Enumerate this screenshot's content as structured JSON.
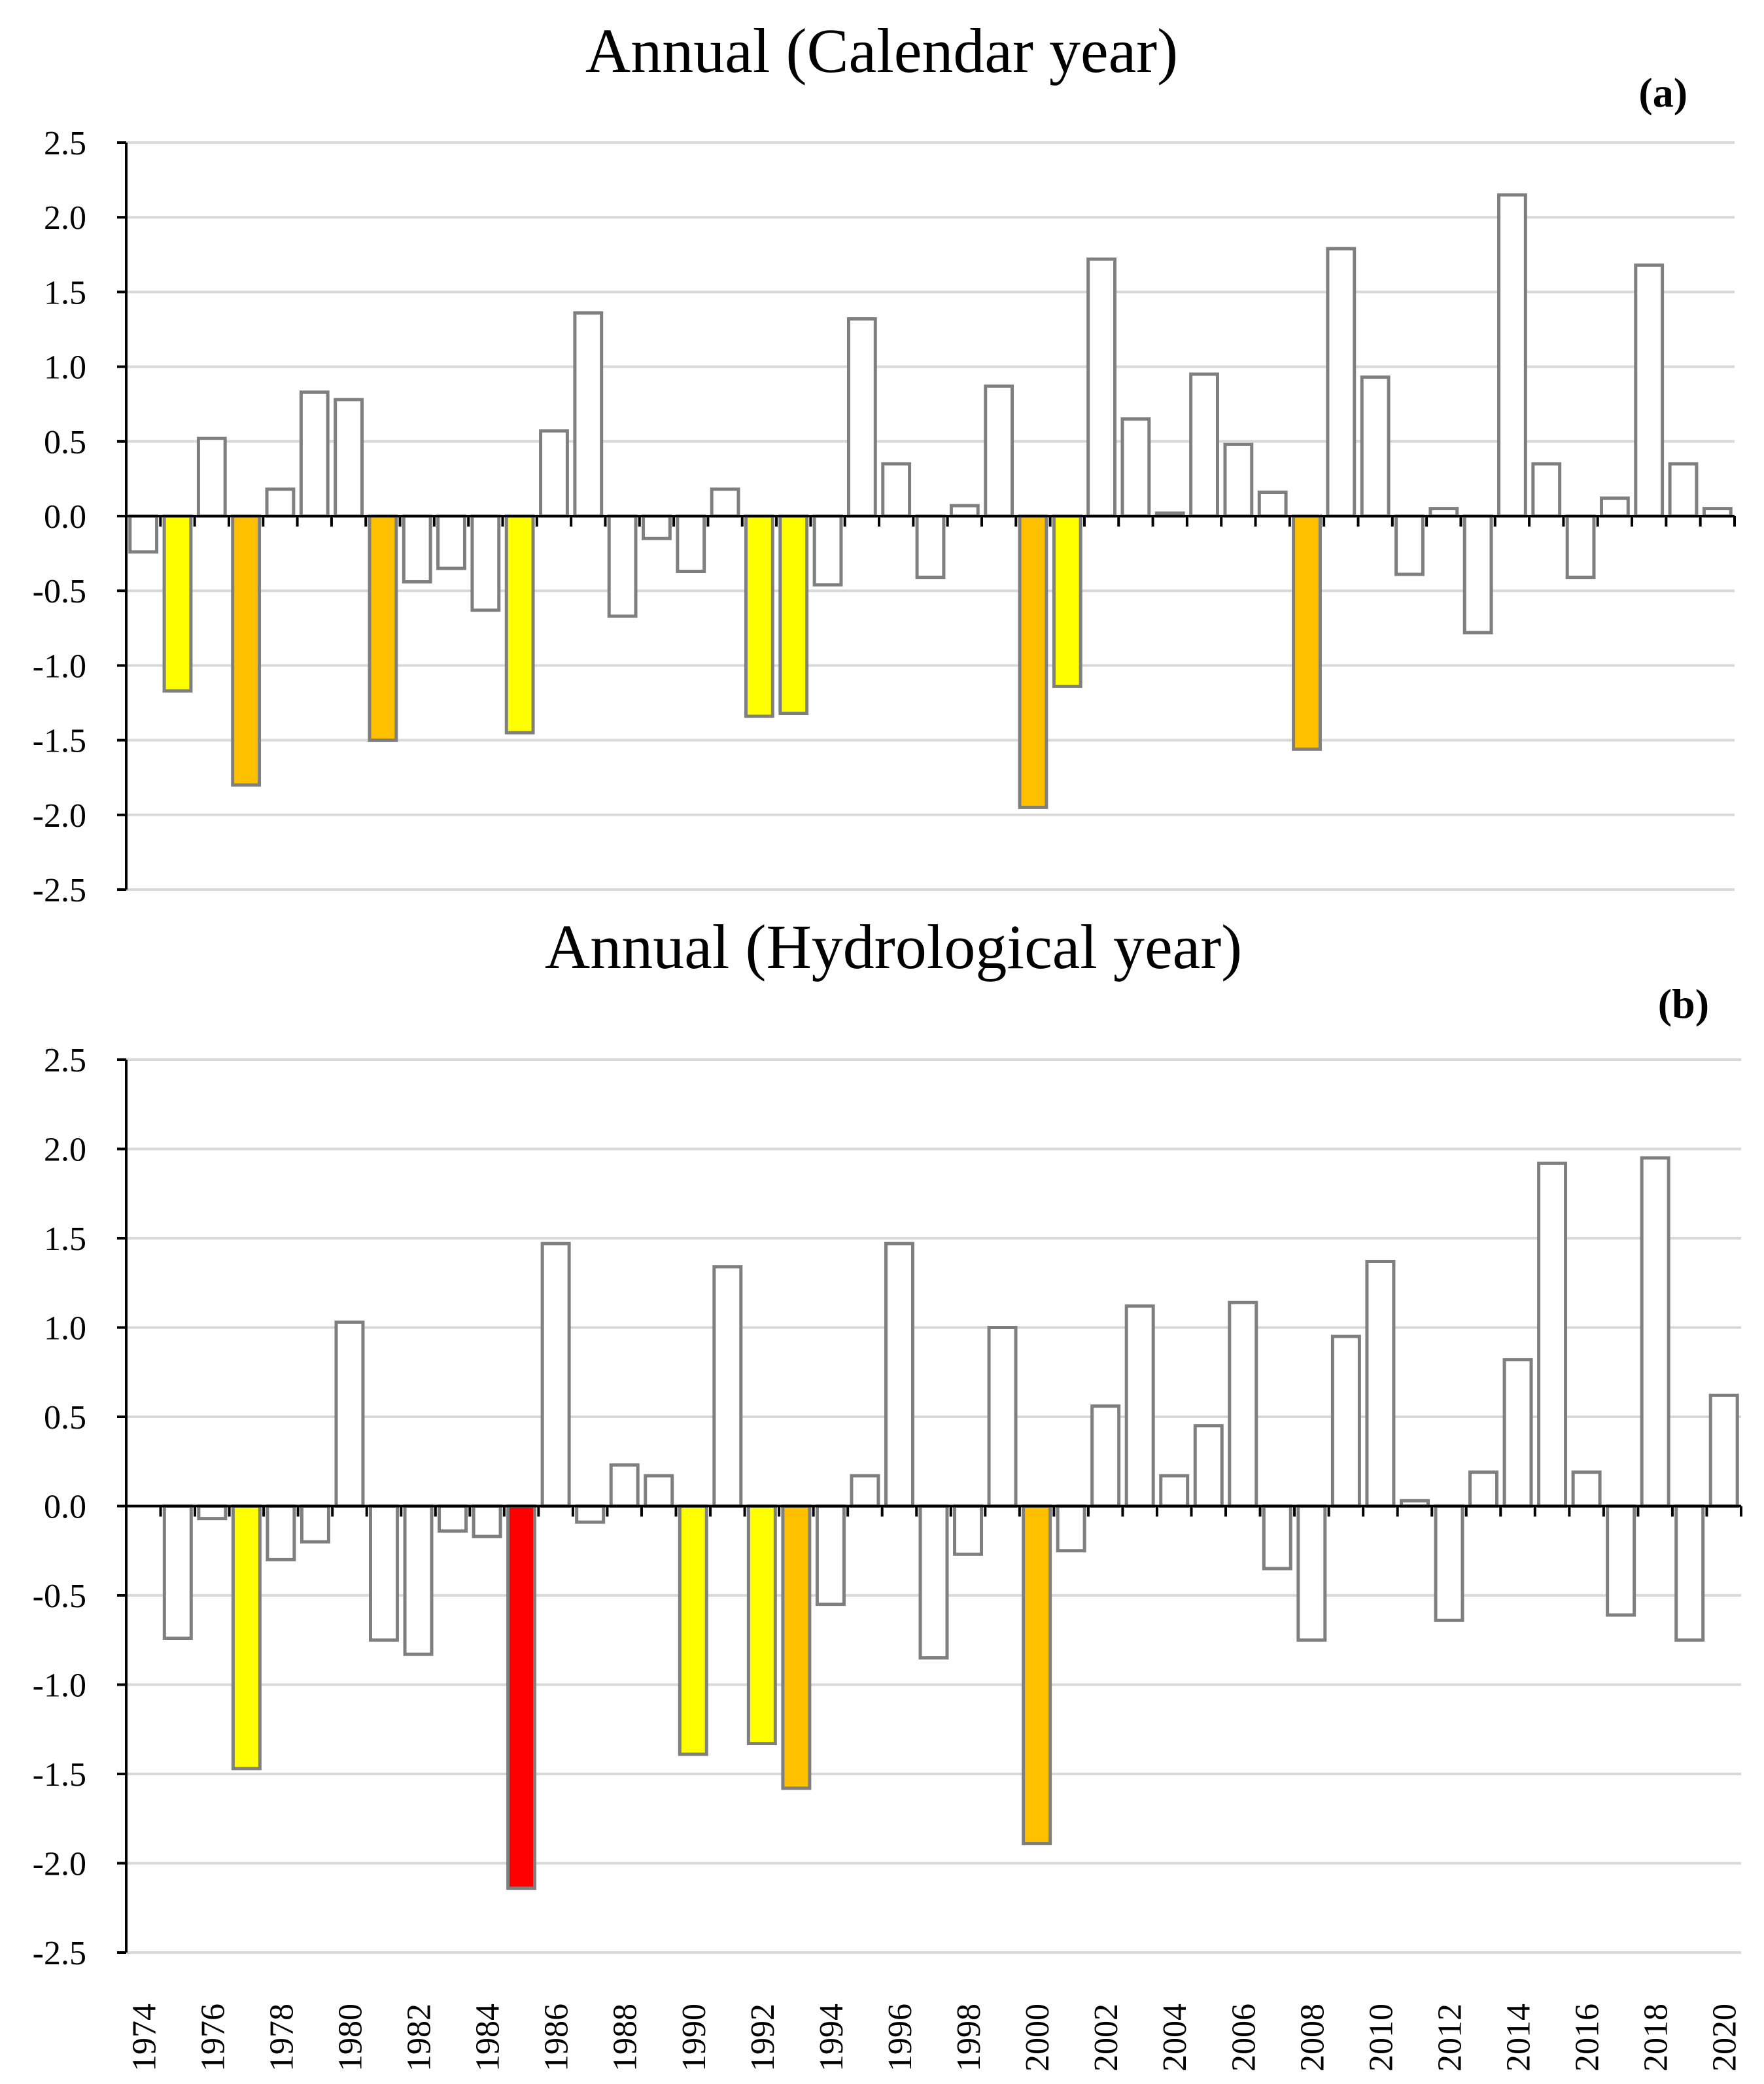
{
  "chart_data": [
    {
      "type": "bar",
      "title": "Annual (Calendar year)",
      "panel_label": "(a)",
      "xlabel": "",
      "ylabel": "",
      "ylim": [
        -2.5,
        2.5
      ],
      "y_ticks": [
        "2.5",
        "2.0",
        "1.5",
        "1.0",
        "0.5",
        "0.0",
        "-0.5",
        "-1.0",
        "-1.5",
        "-2.0",
        "-2.5"
      ],
      "y_tick_values": [
        2.5,
        2.0,
        1.5,
        1.0,
        0.5,
        0.0,
        -0.5,
        -1.0,
        -1.5,
        -2.0,
        -2.5
      ],
      "categories": [
        "1974",
        "1975",
        "1976",
        "1977",
        "1978",
        "1979",
        "1980",
        "1981",
        "1982",
        "1983",
        "1984",
        "1985",
        "1986",
        "1987",
        "1988",
        "1989",
        "1990",
        "1991",
        "1992",
        "1993",
        "1994",
        "1995",
        "1996",
        "1997",
        "1998",
        "1999",
        "2000",
        "2001",
        "2002",
        "2003",
        "2004",
        "2005",
        "2006",
        "2007",
        "2008",
        "2009",
        "2010",
        "2011",
        "2012",
        "2013",
        "2014",
        "2015",
        "2016",
        "2017",
        "2018",
        "2019",
        "2020"
      ],
      "values": [
        -0.24,
        -1.17,
        0.52,
        -1.8,
        0.18,
        0.83,
        0.78,
        -1.5,
        -0.44,
        -0.35,
        -0.63,
        -1.45,
        0.57,
        1.36,
        -0.67,
        -0.15,
        -0.37,
        0.18,
        -1.34,
        -1.32,
        -0.46,
        1.32,
        0.35,
        -0.41,
        0.07,
        0.87,
        -1.95,
        -1.14,
        1.72,
        0.65,
        0.02,
        0.95,
        0.48,
        0.16,
        -1.56,
        1.79,
        0.93,
        -0.39,
        0.05,
        -0.78,
        2.15,
        0.35,
        -0.41,
        0.12,
        1.68,
        0.35,
        0.05
      ],
      "bar_colors": [
        "#ffffff",
        "#ffff00",
        "#ffffff",
        "#ffc000",
        "#ffffff",
        "#ffffff",
        "#ffffff",
        "#ffc000",
        "#ffffff",
        "#ffffff",
        "#ffffff",
        "#ffff00",
        "#ffffff",
        "#ffffff",
        "#ffffff",
        "#ffffff",
        "#ffffff",
        "#ffffff",
        "#ffff00",
        "#ffff00",
        "#ffffff",
        "#ffffff",
        "#ffffff",
        "#ffffff",
        "#ffffff",
        "#ffffff",
        "#ffc000",
        "#ffff00",
        "#ffffff",
        "#ffffff",
        "#ffffff",
        "#ffffff",
        "#ffffff",
        "#ffffff",
        "#ffc000",
        "#ffffff",
        "#ffffff",
        "#ffffff",
        "#ffffff",
        "#ffffff",
        "#ffffff",
        "#ffffff",
        "#ffffff",
        "#ffffff",
        "#ffffff",
        "#ffffff",
        "#ffffff"
      ],
      "show_x_tick_labels": false,
      "grid": true
    },
    {
      "type": "bar",
      "title": "Annual (Hydrological year)",
      "panel_label": "(b)",
      "xlabel": "",
      "ylabel": "",
      "ylim": [
        -2.5,
        2.5
      ],
      "y_ticks": [
        "2.5",
        "2.0",
        "1.5",
        "1.0",
        "0.5",
        "0.0",
        "-0.5",
        "-1.0",
        "-1.5",
        "-2.0",
        "-2.5"
      ],
      "y_tick_values": [
        2.5,
        2.0,
        1.5,
        1.0,
        0.5,
        0.0,
        -0.5,
        -1.0,
        -1.5,
        -2.0,
        -2.5
      ],
      "categories": [
        "1974",
        "1975",
        "1976",
        "1977",
        "1978",
        "1979",
        "1980",
        "1981",
        "1982",
        "1983",
        "1984",
        "1985",
        "1986",
        "1987",
        "1988",
        "1989",
        "1990",
        "1991",
        "1992",
        "1993",
        "1994",
        "1995",
        "1996",
        "1997",
        "1998",
        "1999",
        "2000",
        "2001",
        "2002",
        "2003",
        "2004",
        "2005",
        "2006",
        "2007",
        "2008",
        "2009",
        "2010",
        "2011",
        "2012",
        "2013",
        "2014",
        "2015",
        "2016",
        "2017",
        "2018",
        "2019",
        "2020"
      ],
      "x_tick_labels": [
        "1974",
        "1976",
        "1978",
        "1980",
        "1982",
        "1984",
        "1986",
        "1988",
        "1990",
        "1992",
        "1994",
        "1996",
        "1998",
        "2000",
        "2002",
        "2004",
        "2006",
        "2008",
        "2010",
        "2012",
        "2014",
        "2016",
        "2018",
        "2020"
      ],
      "values": [
        null,
        -0.74,
        -0.07,
        -1.47,
        -0.3,
        -0.2,
        1.03,
        -0.75,
        -0.83,
        -0.14,
        -0.17,
        -2.14,
        1.47,
        -0.09,
        0.23,
        0.17,
        -1.39,
        1.34,
        -1.33,
        -1.58,
        -0.55,
        0.17,
        1.47,
        -0.85,
        -0.27,
        1.0,
        -1.89,
        -0.25,
        0.56,
        1.12,
        0.17,
        0.45,
        1.14,
        -0.35,
        -0.75,
        0.95,
        1.37,
        0.03,
        -0.64,
        0.19,
        0.82,
        1.92,
        0.19,
        -0.61,
        1.95,
        -0.75,
        0.62
      ],
      "bar_colors": [
        "#ffffff",
        "#ffffff",
        "#ffffff",
        "#ffff00",
        "#ffffff",
        "#ffffff",
        "#ffffff",
        "#ffffff",
        "#ffffff",
        "#ffffff",
        "#ffffff",
        "#ff0000",
        "#ffffff",
        "#ffffff",
        "#ffffff",
        "#ffffff",
        "#ffff00",
        "#ffffff",
        "#ffff00",
        "#ffc000",
        "#ffffff",
        "#ffffff",
        "#ffffff",
        "#ffffff",
        "#ffffff",
        "#ffffff",
        "#ffc000",
        "#ffffff",
        "#ffffff",
        "#ffffff",
        "#ffffff",
        "#ffffff",
        "#ffffff",
        "#ffffff",
        "#ffffff",
        "#ffffff",
        "#ffffff",
        "#ffffff",
        "#ffffff",
        "#ffffff",
        "#ffffff",
        "#ffffff",
        "#ffffff",
        "#ffffff",
        "#ffffff",
        "#ffffff",
        "#ffffff"
      ],
      "show_x_tick_labels": true,
      "grid": true
    }
  ]
}
